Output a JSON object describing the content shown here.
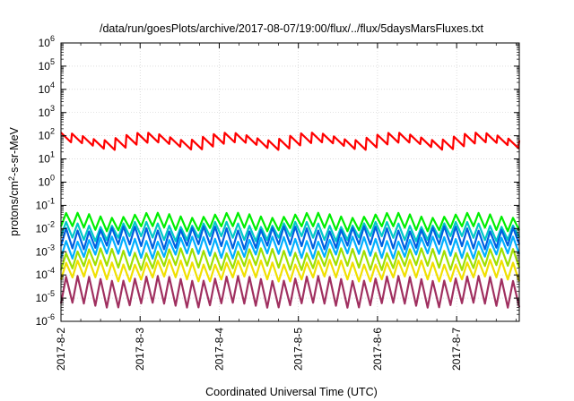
{
  "chart_data": {
    "type": "line",
    "title": "/data/run/goesPlots/archive/2017-08-07/19:00/flux/../flux/5daysMarsFluxes.txt",
    "xlabel": "Coordinated Universal Time (UTC)",
    "ylabel": "protons/cm^2-s-sr-MeV",
    "ylabel_parts": [
      "protons/cm",
      "2",
      "-s-sr-MeV"
    ],
    "x_tick_labels": [
      "2017-8-2",
      "2017-8-3",
      "2017-8-4",
      "2017-8-5",
      "2017-8-6",
      "2017-8-7"
    ],
    "x_range": [
      "2017-08-02T00:00",
      "2017-08-07T19:00"
    ],
    "y_scale": "log",
    "y_exponent_range": [
      -6,
      6
    ],
    "y_tick_labels": [
      {
        "base": "10",
        "exp": "6"
      },
      {
        "base": "10",
        "exp": "5"
      },
      {
        "base": "10",
        "exp": "4"
      },
      {
        "base": "10",
        "exp": "3"
      },
      {
        "base": "10",
        "exp": "2"
      },
      {
        "base": "10",
        "exp": "1"
      },
      {
        "base": "10",
        "exp": "0"
      },
      {
        "base": "10",
        "exp": "-1"
      },
      {
        "base": "10",
        "exp": "-2"
      },
      {
        "base": "10",
        "exp": "-3"
      },
      {
        "base": "10",
        "exp": "-4"
      },
      {
        "base": "10",
        "exp": "-5"
      },
      {
        "base": "10",
        "exp": "-6"
      }
    ],
    "grid": true,
    "series": [
      {
        "color": "#ff0000",
        "baseline": 20,
        "spike": 5,
        "teeth": 42,
        "pattern": "wave"
      },
      {
        "color": "#00ee00",
        "baseline": 0.012,
        "spike": 3.2,
        "teeth": 40,
        "pattern": "saw"
      },
      {
        "color": "#00c8c8",
        "baseline": 0.0045,
        "spike": 3.5,
        "teeth": 40,
        "pattern": "saw"
      },
      {
        "color": "#0060e0",
        "baseline": 0.002,
        "spike": 5,
        "teeth": 40,
        "pattern": "saw"
      },
      {
        "color": "#00b0ff",
        "baseline": 0.0008,
        "spike": 4.5,
        "teeth": 40,
        "pattern": "saw"
      },
      {
        "color": "#a0e000",
        "baseline": 0.00025,
        "spike": 4.5,
        "teeth": 40,
        "pattern": "saw"
      },
      {
        "color": "#f0e000",
        "baseline": 8e-05,
        "spike": 4.5,
        "teeth": 40,
        "pattern": "saw"
      },
      {
        "color": "#a03060",
        "baseline": 6e-06,
        "spike": 12,
        "teeth": 40,
        "pattern": "saw"
      }
    ]
  }
}
